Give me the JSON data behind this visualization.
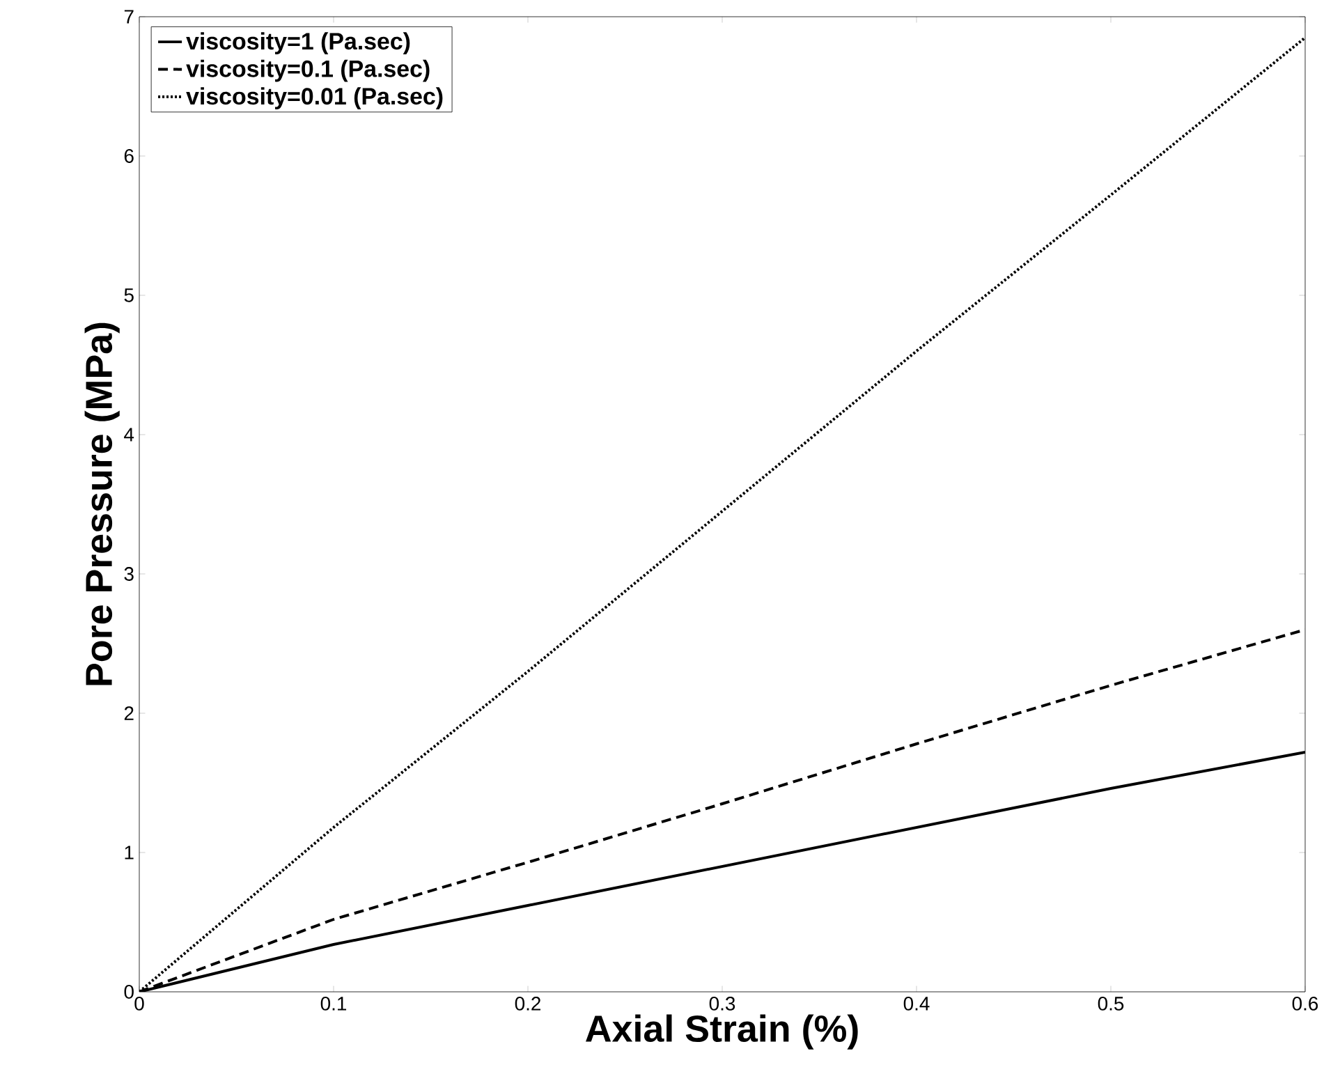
{
  "chart_data": {
    "type": "line",
    "xlabel": "Axial Strain (%)",
    "ylabel": "Pore Pressure (MPa)",
    "xlim": [
      0,
      0.6
    ],
    "ylim": [
      0,
      7
    ],
    "xticks": [
      0,
      0.1,
      0.2,
      0.3,
      0.4,
      0.5,
      0.6
    ],
    "yticks": [
      0,
      1,
      2,
      3,
      4,
      5,
      6,
      7
    ],
    "grid": false,
    "legend": "top left",
    "marker": "none",
    "x": [
      0,
      0.1,
      0.2,
      0.3,
      0.4,
      0.5,
      0.6
    ],
    "series": [
      {
        "name": "viscosity=1 (Pa.sec)",
        "color": "#000000",
        "line_style": "solid",
        "values": [
          0,
          0.34,
          0.62,
          0.9,
          1.18,
          1.46,
          1.72
        ]
      },
      {
        "name": "viscosity=0.1 (Pa.sec)",
        "color": "#000000",
        "line_style": "dashed",
        "values": [
          0,
          0.52,
          0.93,
          1.35,
          1.78,
          2.2,
          2.6
        ]
      },
      {
        "name": "viscosity=0.01 (Pa.sec)",
        "color": "#000000",
        "line_style": "dotted",
        "values": [
          0,
          1.18,
          2.3,
          3.45,
          4.6,
          5.72,
          6.85
        ]
      }
    ]
  }
}
